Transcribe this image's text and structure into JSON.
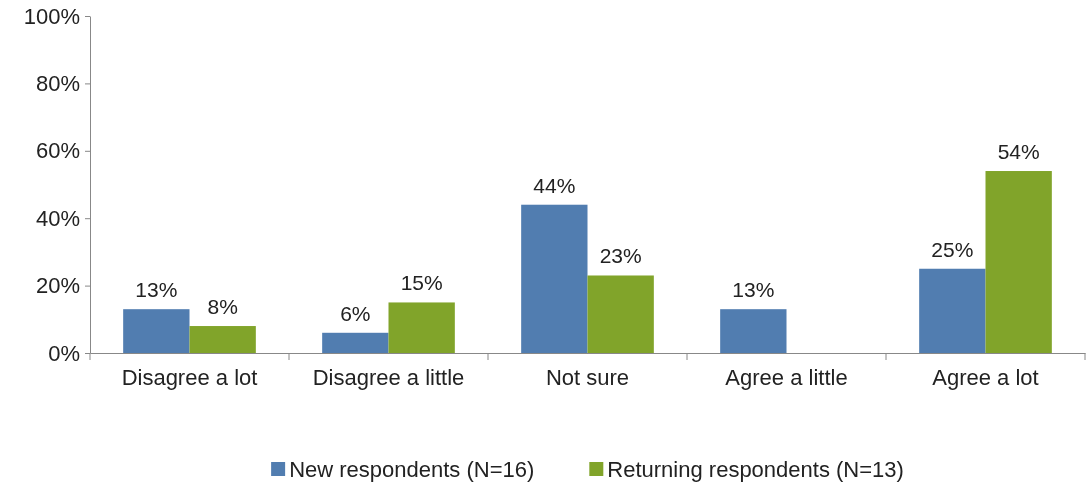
{
  "chart_data": {
    "type": "bar",
    "categories": [
      "Disagree a lot",
      "Disagree a little",
      "Not sure",
      "Agree a little",
      "Agree a lot"
    ],
    "series": [
      {
        "name": "New respondents (N=16)",
        "color": "#517db0",
        "values": [
          13,
          6,
          44,
          13,
          25
        ],
        "value_labels": [
          "13%",
          "6%",
          "44%",
          "13%",
          "25%"
        ]
      },
      {
        "name": "Returning respondents (N=13)",
        "color": "#81a42a",
        "values": [
          8,
          15,
          23,
          null,
          54
        ],
        "value_labels": [
          "8%",
          "15%",
          "23%",
          null,
          "54%"
        ]
      }
    ],
    "ylim": [
      0,
      100
    ],
    "yticks": [
      {
        "value": 0,
        "label": "0%"
      },
      {
        "value": 20,
        "label": "20%"
      },
      {
        "value": 40,
        "label": "40%"
      },
      {
        "value": 60,
        "label": "60%"
      },
      {
        "value": 80,
        "label": "80%"
      },
      {
        "value": 100,
        "label": "100%"
      }
    ],
    "legend": "bottom"
  }
}
